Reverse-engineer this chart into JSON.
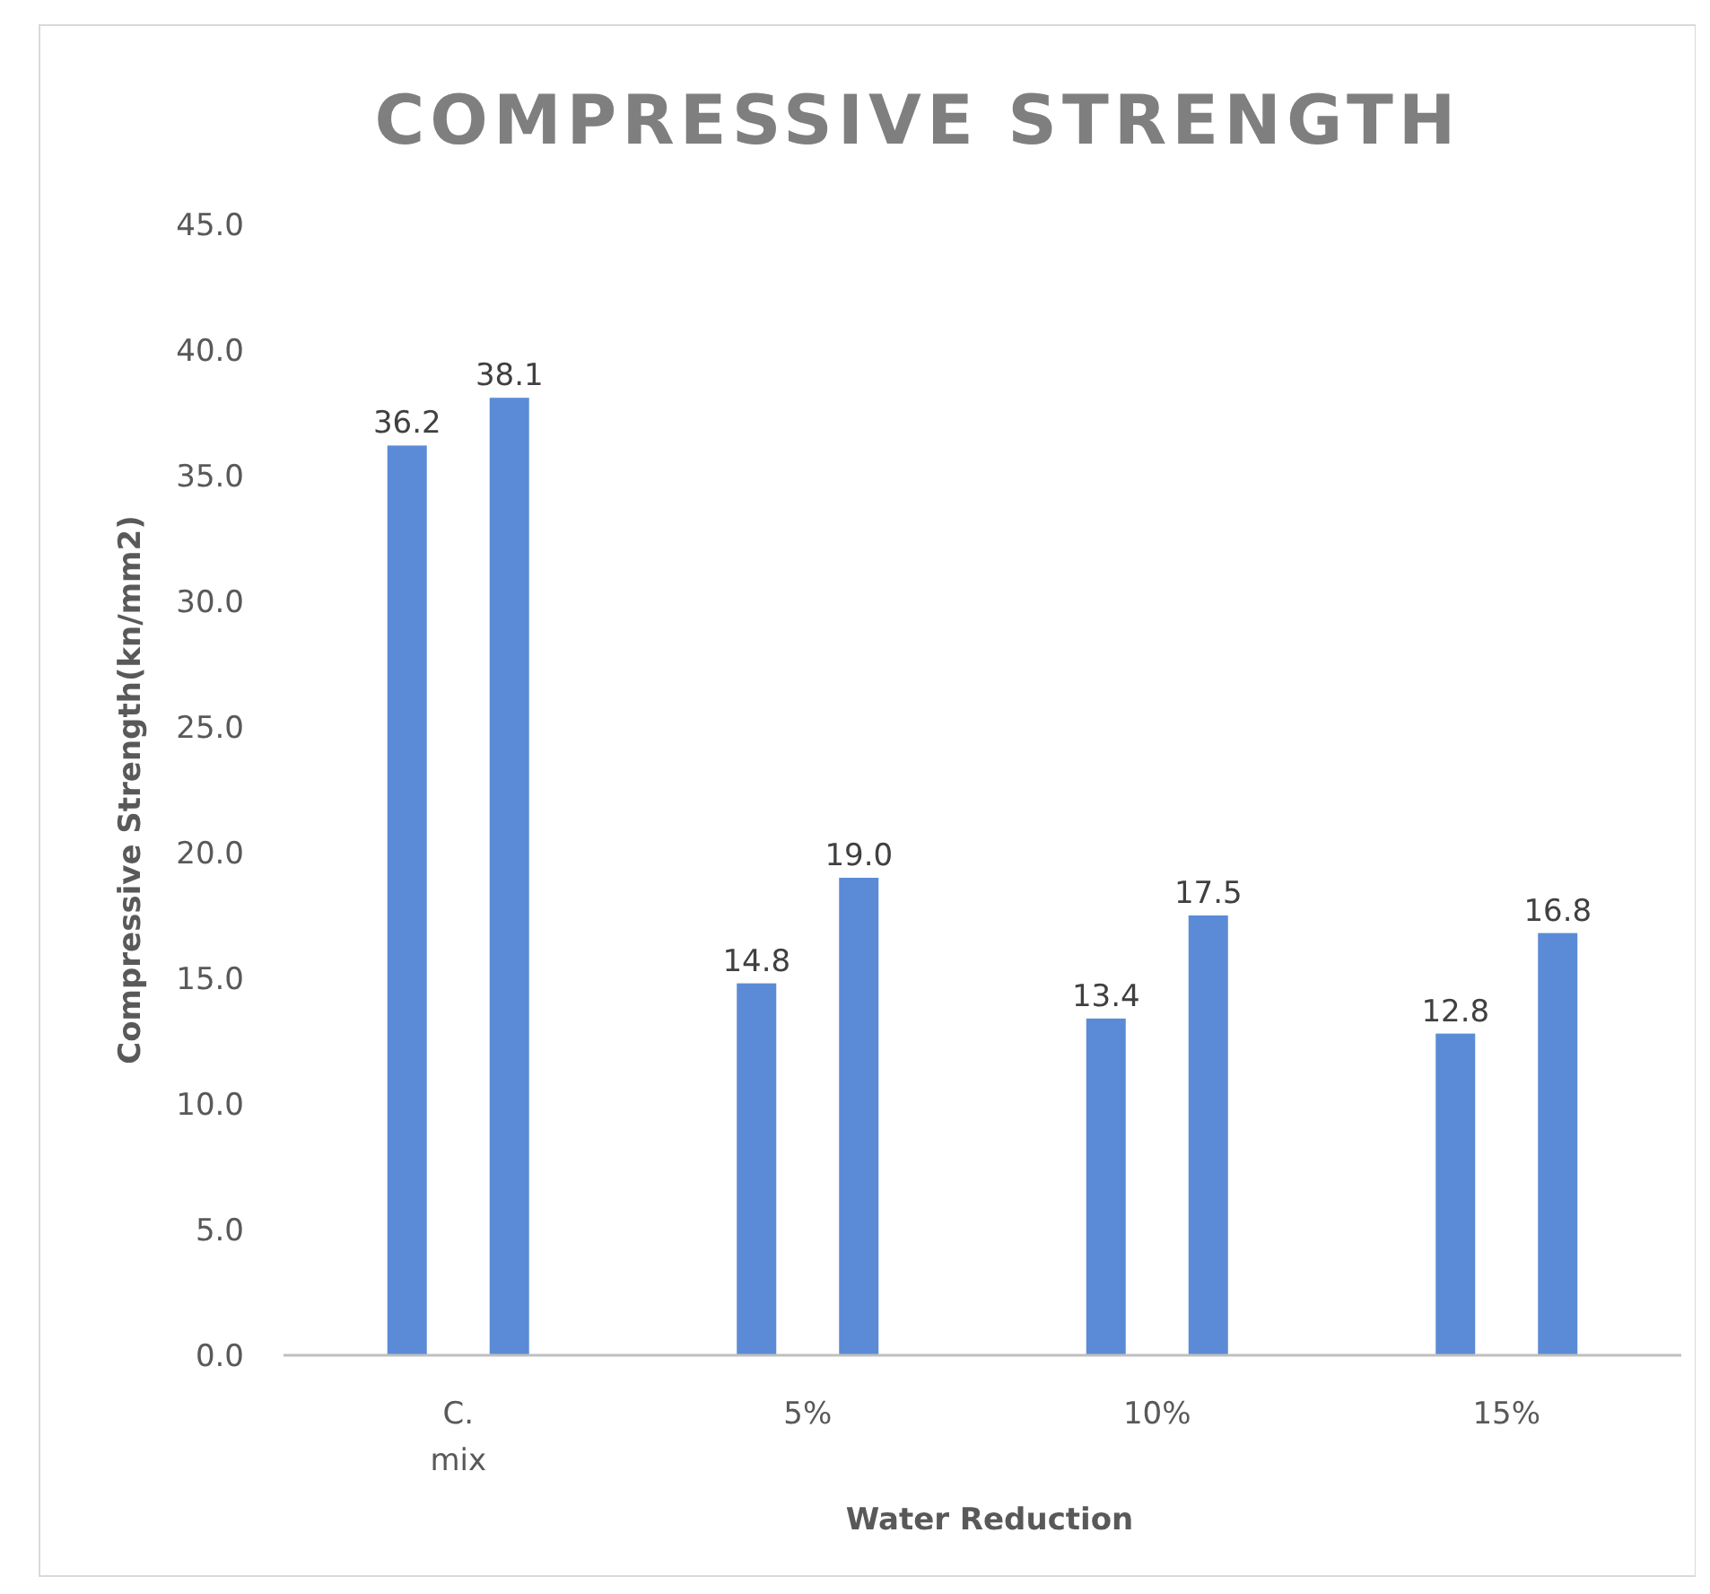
{
  "chart_data": {
    "type": "bar",
    "title": "COMPRESSIVE STRENGTH",
    "xlabel": "Water Reduction",
    "ylabel": "Compressive Strength(kn/mm2)",
    "categories": [
      "C. mix",
      "5%",
      "10%",
      "15%"
    ],
    "series": [
      {
        "color": "#5b8bd6",
        "values": [
          36.2,
          14.8,
          13.4,
          12.8
        ],
        "value_labels": [
          "36.2",
          "14.8",
          "13.4",
          "12.8"
        ]
      },
      {
        "color": "#5b8bd6",
        "values": [
          38.1,
          19.0,
          17.5,
          16.8
        ],
        "value_labels": [
          "38.1",
          "19.0",
          "17.5",
          "16.8"
        ]
      }
    ],
    "ylim": [
      0,
      45
    ],
    "yticks": [
      {
        "value": 0,
        "label": "0.0"
      },
      {
        "value": 5,
        "label": "5.0"
      },
      {
        "value": 10,
        "label": "10.0"
      },
      {
        "value": 15,
        "label": "15.0"
      },
      {
        "value": 20,
        "label": "20.0"
      },
      {
        "value": 25,
        "label": "25.0"
      },
      {
        "value": 30,
        "label": "30.0"
      },
      {
        "value": 35,
        "label": "35.0"
      },
      {
        "value": 40,
        "label": "40.0"
      },
      {
        "value": 45,
        "label": "45.0"
      }
    ],
    "grid": false
  }
}
